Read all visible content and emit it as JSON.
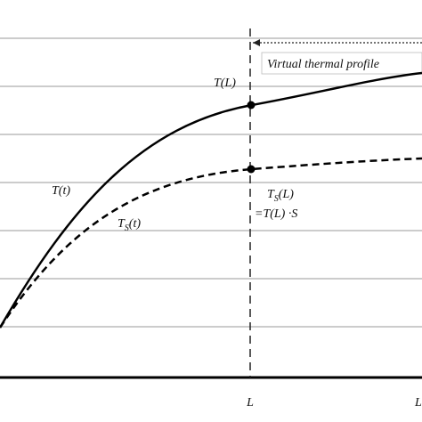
{
  "labels": {
    "virtual_profile": "Virtual thermal profile",
    "t_l": "T(L)",
    "t_t": "T(t)",
    "ts_t": {
      "main": "T",
      "sub": "S",
      "rest": "(t)"
    },
    "ts_l": {
      "main": "T",
      "sub": "S",
      "rest": "(L)"
    },
    "ts_l_eq": "=T(L) ·S",
    "x_l": "L",
    "x_l_right": "L"
  }
}
